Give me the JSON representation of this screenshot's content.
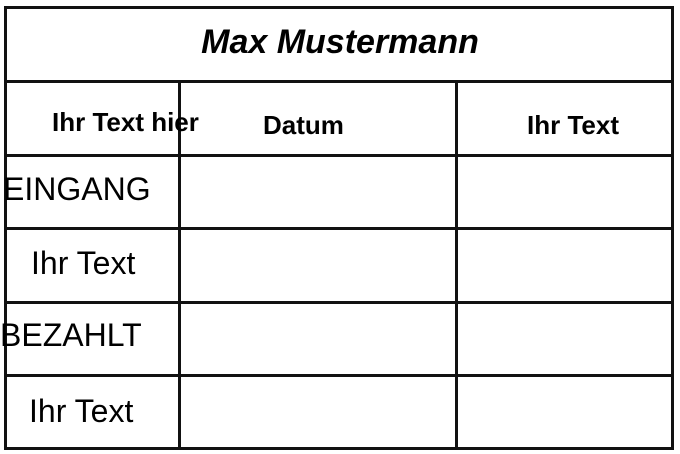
{
  "title": "Max Mustermann",
  "headers": [
    "Ihr Text hier",
    "Datum",
    "Ihr Text"
  ],
  "rows": [
    {
      "label": "EINGANG",
      "cells": [
        "",
        ""
      ]
    },
    {
      "label": "Ihr Text",
      "cells": [
        "",
        ""
      ]
    },
    {
      "label": "BEZAHLT",
      "cells": [
        "",
        ""
      ]
    },
    {
      "label": "Ihr Text",
      "cells": [
        "",
        ""
      ]
    }
  ]
}
